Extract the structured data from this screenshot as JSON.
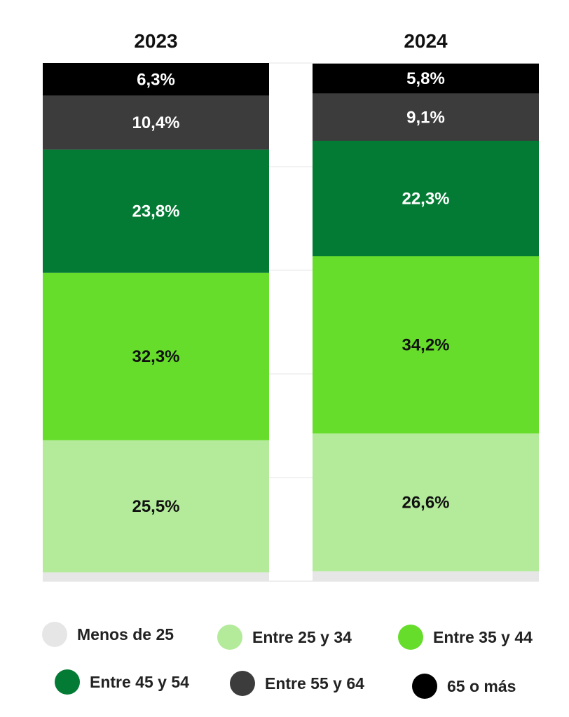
{
  "chart_data": {
    "type": "bar",
    "stacked": true,
    "categories": [
      "2023",
      "2024"
    ],
    "series": [
      {
        "name": "Menos de 25",
        "color": "#e6e6e6",
        "label_color": "#111111",
        "values": [
          1.7,
          1.9
        ],
        "labels": [
          "",
          ""
        ]
      },
      {
        "name": "Entre 25 y 34",
        "color": "#b3eb9b",
        "label_color": "#111111",
        "values": [
          25.5,
          26.6
        ],
        "labels": [
          "25,5%",
          "26,6%"
        ]
      },
      {
        "name": "Entre 35 y 44",
        "color": "#66dd2a",
        "label_color": "#111111",
        "values": [
          32.3,
          34.2
        ],
        "labels": [
          "32,3%",
          "34,2%"
        ]
      },
      {
        "name": "Entre 45 y 54",
        "color": "#047b35",
        "label_color": "#ffffff",
        "values": [
          23.8,
          22.3
        ],
        "labels": [
          "23,8%",
          "22,3%"
        ]
      },
      {
        "name": "Entre 55 y 64",
        "color": "#3c3c3c",
        "label_color": "#ffffff",
        "values": [
          10.4,
          9.1
        ],
        "labels": [
          "10,4%",
          "9,1%"
        ]
      },
      {
        "name": "65 o más",
        "color": "#000000",
        "label_color": "#ffffff",
        "values": [
          6.3,
          5.8
        ],
        "labels": [
          "6,3%",
          "5,8%"
        ]
      }
    ],
    "ylim": [
      0,
      100
    ],
    "title": "",
    "xlabel": "",
    "ylabel": "",
    "grid": true,
    "legend_position": "bottom"
  }
}
